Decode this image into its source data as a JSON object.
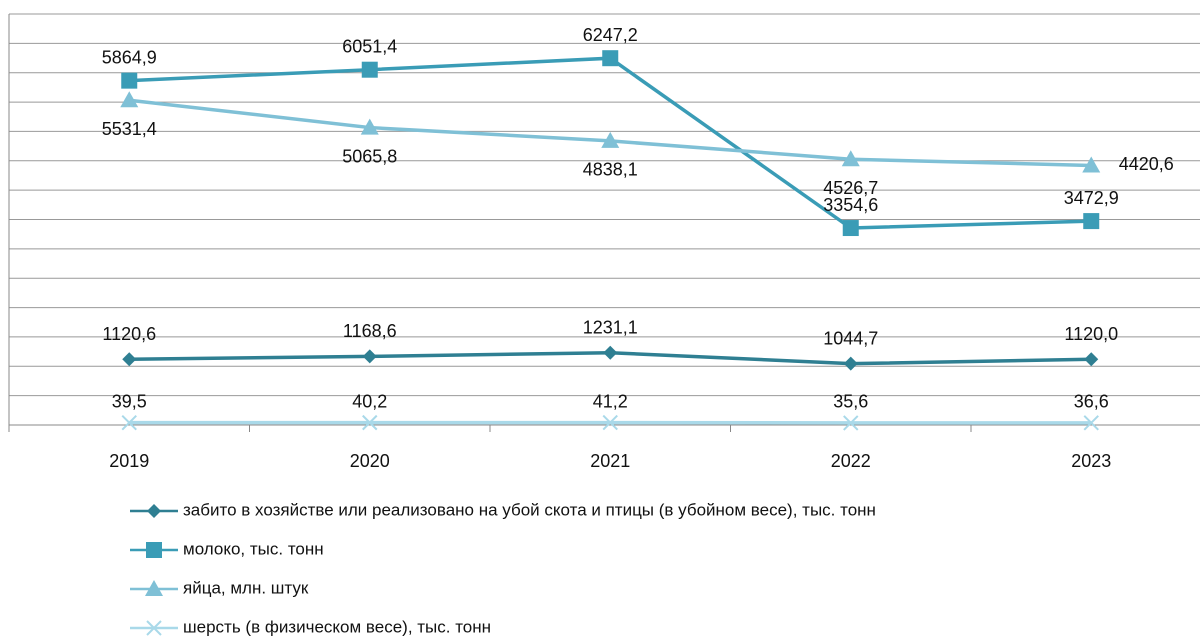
{
  "chart_data": {
    "type": "line",
    "categories": [
      "2019",
      "2020",
      "2021",
      "2022",
      "2023"
    ],
    "ylim": [
      0,
      7000
    ],
    "yticks": [
      0,
      500,
      1000,
      1500,
      2000,
      2500,
      3000,
      3500,
      4000,
      4500,
      5000,
      5500,
      6000,
      6500,
      7000
    ],
    "grid": true,
    "legend": "bottom",
    "series": [
      {
        "name": "забито в хозяйстве или реализовано на убой скота и птицы  (в убойном весе), тыс. тонн",
        "color": "#2f7f92",
        "marker": "diamond",
        "values": [
          1120.6,
          1168.6,
          1231.1,
          1044.7,
          1120.0
        ],
        "value_labels": [
          "1120,6",
          "1168,6",
          "1231,1",
          "1044,7",
          "1120,0"
        ]
      },
      {
        "name": "молоко, тыс. тонн",
        "color": "#3a9cb6",
        "marker": "square",
        "values": [
          5864.9,
          6051.4,
          6247.2,
          3354.6,
          3472.9
        ],
        "value_labels": [
          "5864,9",
          "6051,4",
          "6247,2",
          "3354,6",
          "3472,9"
        ]
      },
      {
        "name": "яйца, млн. штук",
        "color": "#7fc0d6",
        "marker": "triangle",
        "values": [
          5531.4,
          5065.8,
          4838.1,
          4526.7,
          4420.6
        ],
        "value_labels": [
          "5531,4",
          "5065,8",
          "4838,1",
          "4526,7",
          "4420,6"
        ]
      },
      {
        "name": "шерсть (в физическом весе), тыс. тонн",
        "color": "#a9d9e9",
        "marker": "x",
        "values": [
          39.5,
          40.2,
          41.2,
          35.6,
          36.6
        ],
        "value_labels": [
          "39,5",
          "40,2",
          "41,2",
          "35,6",
          "36,6"
        ]
      }
    ]
  }
}
